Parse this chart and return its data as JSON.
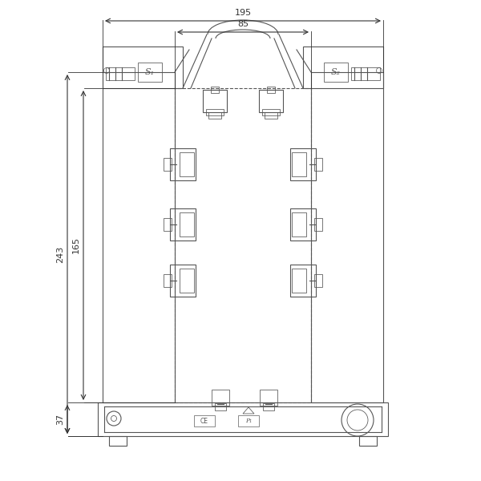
{
  "bg_color": "#ffffff",
  "line_color": "#555555",
  "dim_color": "#333333",
  "figsize": [
    6.0,
    6.0
  ],
  "dpi": 100,
  "dim_195": "195",
  "dim_85": "85",
  "dim_243": "243",
  "dim_165": "165",
  "dim_37": "37",
  "label_S1": "S₁",
  "label_S2": "S₂",
  "label_CE": "CE",
  "label_P1": "P₁"
}
